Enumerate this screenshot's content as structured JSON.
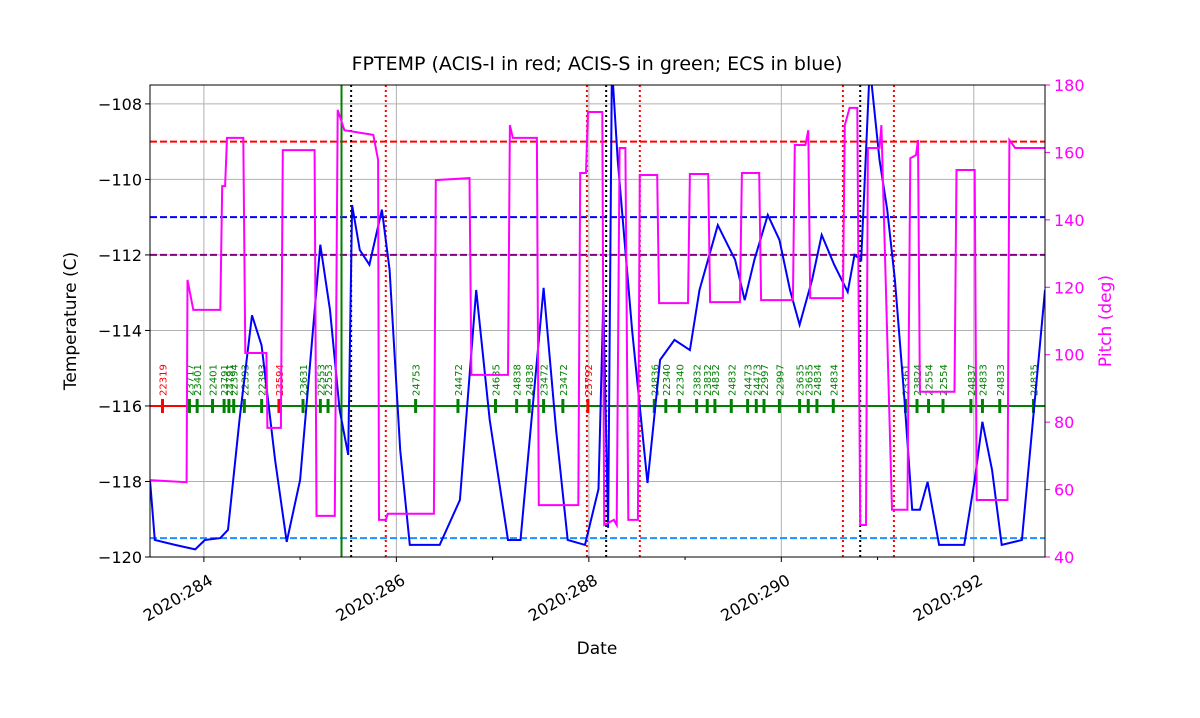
{
  "chart_data": {
    "type": "line",
    "title": "FPTEMP (ACIS-I in red; ACIS-S in green; ECS in blue)",
    "xlabel": "Date",
    "ylabel": "Temperature (C)",
    "y2label": "Pitch (deg)",
    "xlim": [
      283.44,
      292.74
    ],
    "xticks": [
      {
        "value": 284,
        "label": "2020:284"
      },
      {
        "value": 286,
        "label": "2020:286"
      },
      {
        "value": 288,
        "label": "2020:288"
      },
      {
        "value": 290,
        "label": "2020:290"
      },
      {
        "value": 292,
        "label": "2020:292"
      }
    ],
    "xminorticks": [
      285,
      287,
      289,
      291
    ],
    "ylim": [
      -120,
      -107.5
    ],
    "yticks": [
      {
        "value": -120,
        "label": "−120"
      },
      {
        "value": -118,
        "label": "−118"
      },
      {
        "value": -116,
        "label": "−116"
      },
      {
        "value": -114,
        "label": "−114"
      },
      {
        "value": -112,
        "label": "−112"
      },
      {
        "value": -110,
        "label": "−110"
      },
      {
        "value": -108,
        "label": "−108"
      }
    ],
    "y2lim": [
      40,
      180
    ],
    "y2ticks": [
      40,
      60,
      80,
      100,
      120,
      140,
      160,
      180
    ],
    "y2color": "#ff00ff",
    "grid": true,
    "series": [
      {
        "color": "#0000ff",
        "x": [
          283.44,
          283.49,
          283.7,
          283.91,
          284.01,
          284.17,
          284.25,
          284.37,
          284.5,
          284.6,
          284.74,
          284.86,
          285.0,
          285.21,
          285.31,
          285.41,
          285.5,
          285.54,
          285.62,
          285.72,
          285.85,
          285.93,
          286.04,
          286.14,
          286.45,
          286.66,
          286.83,
          286.97,
          287.16,
          287.29,
          287.53,
          287.66,
          287.78,
          287.96,
          288.1,
          288.15,
          288.2,
          288.24,
          288.3,
          288.45,
          288.61,
          288.74,
          288.89,
          289.05,
          289.15,
          289.34,
          289.52,
          289.62,
          289.72,
          289.86,
          289.98,
          290.09,
          290.19,
          290.32,
          290.42,
          290.55,
          290.69,
          290.76,
          290.83,
          290.92,
          291.02,
          291.1,
          291.18,
          291.28,
          291.36,
          291.44,
          291.52,
          291.64,
          291.9,
          292.01,
          292.09,
          292.19,
          292.29,
          292.5,
          292.74
        ],
        "values": [
          -117.96,
          -119.55,
          -119.68,
          -119.8,
          -119.55,
          -119.5,
          -119.28,
          -116.37,
          -113.6,
          -114.4,
          -117.43,
          -119.6,
          -117.96,
          -111.73,
          -113.46,
          -116.1,
          -117.3,
          -110.68,
          -111.87,
          -112.26,
          -110.8,
          -112.4,
          -117.17,
          -119.68,
          -119.68,
          -118.49,
          -112.93,
          -116.37,
          -119.55,
          -119.55,
          -112.87,
          -116.64,
          -119.55,
          -119.68,
          -118.2,
          -113.2,
          -119.23,
          -107,
          -109.48,
          -113.99,
          -118.04,
          -114.78,
          -114.25,
          -114.52,
          -112.93,
          -111.21,
          -112.13,
          -113.2,
          -112.13,
          -110.94,
          -111.6,
          -112.93,
          -113.85,
          -112.66,
          -111.47,
          -112.26,
          -112.98,
          -112.0,
          -112.13,
          -107,
          -109.48,
          -110.8,
          -112.66,
          -115.84,
          -118.75,
          -118.75,
          -118.01,
          -119.68,
          -119.68,
          -117.96,
          -116.42,
          -117.7,
          -119.68,
          -119.55,
          -112.93
        ]
      },
      {
        "color": "#ff00ff",
        "axis": "y2",
        "x": [
          283.44,
          283.82,
          283.83,
          283.89,
          284.17,
          284.19,
          284.22,
          284.24,
          284.41,
          284.43,
          284.65,
          284.66,
          284.8,
          284.82,
          285.15,
          285.17,
          285.36,
          285.39,
          285.46,
          285.76,
          285.81,
          285.82,
          285.89,
          285.91,
          286.39,
          286.41,
          286.76,
          286.78,
          287.16,
          287.18,
          287.21,
          287.46,
          287.48,
          287.89,
          287.91,
          287.97,
          287.99,
          288.14,
          288.16,
          288.26,
          288.29,
          288.32,
          288.38,
          288.41,
          288.51,
          288.53,
          288.71,
          288.73,
          289.03,
          289.05,
          289.24,
          289.26,
          289.57,
          289.59,
          289.77,
          289.79,
          290.12,
          290.14,
          290.25,
          290.28,
          290.3,
          290.64,
          290.66,
          290.71,
          290.79,
          290.82,
          290.88,
          290.9,
          291.02,
          291.04,
          291.15,
          291.31,
          291.34,
          291.4,
          291.42,
          291.44,
          291.8,
          291.82,
          292.01,
          292.03,
          292.35,
          292.37,
          292.43,
          292.74
        ],
        "values": [
          62.8,
          62.2,
          122.2,
          113.3,
          113.3,
          150,
          150,
          164.3,
          164.3,
          100.5,
          100.5,
          78.3,
          78.3,
          160.7,
          160.7,
          52.2,
          52.2,
          172.6,
          166.6,
          165.2,
          157.8,
          51,
          51,
          52.8,
          52.8,
          151.8,
          152.4,
          94,
          94,
          168.1,
          164.3,
          164.3,
          55.4,
          55.4,
          153.9,
          153.9,
          172,
          172,
          49.5,
          51,
          49.5,
          161.3,
          161.3,
          51,
          51,
          153.3,
          153.3,
          115.3,
          115.3,
          153.6,
          153.6,
          115.6,
          115.6,
          153.9,
          153.9,
          116.2,
          116.2,
          162.2,
          162.2,
          166.6,
          116.8,
          116.8,
          168.1,
          173.2,
          173.2,
          49.5,
          49.5,
          161.3,
          161.3,
          168.1,
          54,
          54,
          158.3,
          159.2,
          163.7,
          89,
          89,
          154.8,
          154.8,
          56.9,
          56.9,
          163.7,
          161.3,
          161.3
        ]
      }
    ],
    "hlines": [
      {
        "y": -109,
        "color": "#ff0000"
      },
      {
        "y": -111,
        "color": "#0000ff"
      },
      {
        "y": -112,
        "color": "#800080"
      },
      {
        "y": -119.5,
        "color": "#1e90ff"
      }
    ],
    "vlines": [
      {
        "x": 285.43,
        "color": "#008000",
        "style": "solid"
      },
      {
        "x": 285.53,
        "color": "#000000",
        "style": "dotted"
      },
      {
        "x": 288.18,
        "color": "#000000",
        "style": "dotted"
      },
      {
        "x": 290.82,
        "color": "#000000",
        "style": "dotted"
      },
      {
        "x": 285.89,
        "color": "#ff0000",
        "style": "dotted"
      },
      {
        "x": 287.98,
        "color": "#ff0000",
        "style": "dotted"
      },
      {
        "x": 288.53,
        "color": "#ff0000",
        "style": "dotted"
      },
      {
        "x": 290.64,
        "color": "#ff0000",
        "style": "dotted"
      },
      {
        "x": 291.17,
        "color": "#ff0000",
        "style": "dotted"
      }
    ],
    "segments": [
      {
        "x": [
          283.44,
          283.85
        ],
        "y": -116,
        "color": "#ff0000"
      },
      {
        "x": [
          283.85,
          292.74
        ],
        "y": -116,
        "color": "#008000"
      }
    ],
    "obsids": [
      {
        "x": 283.57,
        "label": "22319",
        "color": "#ff0000"
      },
      {
        "x": 283.85,
        "label": "23717",
        "color": "#008000"
      },
      {
        "x": 283.93,
        "label": "23401",
        "color": "#008000"
      },
      {
        "x": 284.09,
        "label": "22401",
        "color": "#008000"
      },
      {
        "x": 284.21,
        "label": "23791",
        "color": "#008000"
      },
      {
        "x": 284.26,
        "label": "23791",
        "color": "#008000"
      },
      {
        "x": 284.31,
        "label": "22394",
        "color": "#008000"
      },
      {
        "x": 284.42,
        "label": "22393",
        "color": "#008000"
      },
      {
        "x": 284.6,
        "label": "22393",
        "color": "#008000"
      },
      {
        "x": 284.78,
        "label": "23594",
        "color": "#ff0000"
      },
      {
        "x": 285.03,
        "label": "23631",
        "color": "#008000"
      },
      {
        "x": 285.21,
        "label": "22553",
        "color": "#008000"
      },
      {
        "x": 285.29,
        "label": "22553",
        "color": "#008000"
      },
      {
        "x": 286.2,
        "label": "24753",
        "color": "#008000"
      },
      {
        "x": 286.64,
        "label": "24472",
        "color": "#008000"
      },
      {
        "x": 287.03,
        "label": "24635",
        "color": "#008000"
      },
      {
        "x": 287.25,
        "label": "24838",
        "color": "#008000"
      },
      {
        "x": 287.38,
        "label": "24838",
        "color": "#008000"
      },
      {
        "x": 287.53,
        "label": "23472",
        "color": "#008000"
      },
      {
        "x": 287.73,
        "label": "23472",
        "color": "#008000"
      },
      {
        "x": 287.99,
        "label": "25792",
        "color": "#ff0000"
      },
      {
        "x": 288.68,
        "label": "24836",
        "color": "#008000"
      },
      {
        "x": 288.8,
        "label": "22340",
        "color": "#008000"
      },
      {
        "x": 288.94,
        "label": "22340",
        "color": "#008000"
      },
      {
        "x": 289.12,
        "label": "23832",
        "color": "#008000"
      },
      {
        "x": 289.23,
        "label": "23832",
        "color": "#008000"
      },
      {
        "x": 289.31,
        "label": "24832",
        "color": "#008000"
      },
      {
        "x": 289.48,
        "label": "24832",
        "color": "#008000"
      },
      {
        "x": 289.65,
        "label": "24473",
        "color": "#008000"
      },
      {
        "x": 289.74,
        "label": "24473",
        "color": "#008000"
      },
      {
        "x": 289.82,
        "label": "22997",
        "color": "#008000"
      },
      {
        "x": 289.98,
        "label": "22997",
        "color": "#008000"
      },
      {
        "x": 290.19,
        "label": "23635",
        "color": "#008000"
      },
      {
        "x": 290.28,
        "label": "23635",
        "color": "#008000"
      },
      {
        "x": 290.37,
        "label": "24834",
        "color": "#008000"
      },
      {
        "x": 290.54,
        "label": "24834",
        "color": "#008000"
      },
      {
        "x": 291.29,
        "label": "23361",
        "color": "#008000"
      },
      {
        "x": 291.41,
        "label": "23824",
        "color": "#008000"
      },
      {
        "x": 291.53,
        "label": "22554",
        "color": "#008000"
      },
      {
        "x": 291.68,
        "label": "22554",
        "color": "#008000"
      },
      {
        "x": 291.97,
        "label": "24837",
        "color": "#008000"
      },
      {
        "x": 292.09,
        "label": "24833",
        "color": "#008000"
      },
      {
        "x": 292.27,
        "label": "24833",
        "color": "#008000"
      },
      {
        "x": 292.62,
        "label": "24835",
        "color": "#008000"
      }
    ]
  }
}
